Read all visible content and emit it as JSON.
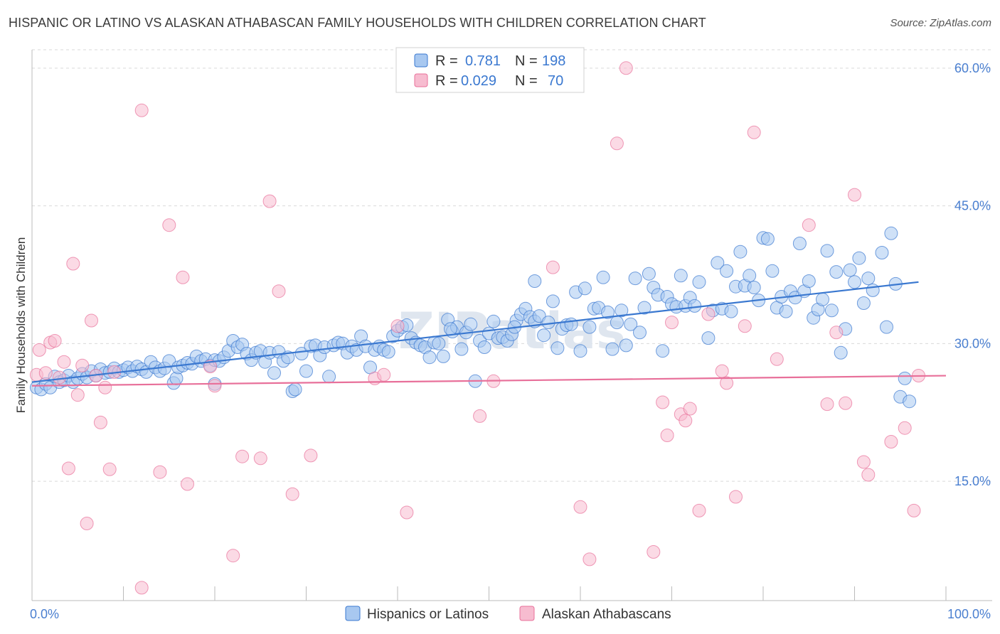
{
  "title": "HISPANIC OR LATINO VS ALASKAN ATHABASCAN FAMILY HOUSEHOLDS WITH CHILDREN CORRELATION CHART",
  "source": "Source: ZipAtlas.com",
  "watermark": "ZIPatlas",
  "colors": {
    "blue": "#3a78d0",
    "blue_fill": "#a8c8f0",
    "pink": "#e8709a",
    "pink_fill": "#f7bcd0",
    "axis_label": "#4a7fd0",
    "grid": "#d8d8d8"
  },
  "legend": {
    "rows": [
      {
        "r_label": "R =",
        "r_value": "0.781",
        "n_label": "N =",
        "n_value": "198"
      },
      {
        "r_label": "R =",
        "r_value": "0.029",
        "n_label": "N =",
        "n_value": "70"
      }
    ]
  },
  "chart_data": {
    "type": "scatter",
    "title": "HISPANIC OR LATINO VS ALASKAN ATHABASCAN FAMILY HOUSEHOLDS WITH CHILDREN CORRELATION CHART",
    "xlabel": "",
    "ylabel": "Family Households with Children",
    "xlim": [
      0,
      100
    ],
    "ylim": [
      2,
      62
    ],
    "x_tick_labels": [
      "0.0%",
      "100.0%"
    ],
    "y_ticks": [
      15,
      30,
      45,
      60
    ],
    "y_tick_labels": [
      "15.0%",
      "30.0%",
      "45.0%",
      "60.0%"
    ],
    "grid": "horizontal dashed",
    "legend_position": "top-center",
    "series": [
      {
        "name": "Hispanics or Latinos",
        "color": "#3a78d0",
        "trend": {
          "x": [
            0,
            97
          ],
          "y": [
            25.8,
            36.7
          ]
        },
        "points": [
          [
            0.5,
            25.2
          ],
          [
            1,
            25.0
          ],
          [
            1.5,
            25.6
          ],
          [
            2,
            25.2
          ],
          [
            2.5,
            26.4
          ],
          [
            3,
            25.8
          ],
          [
            3.5,
            26.0
          ],
          [
            4,
            26.5
          ],
          [
            4.5,
            25.8
          ],
          [
            5,
            26.2
          ],
          [
            5.5,
            26.7
          ],
          [
            6,
            26.3
          ],
          [
            6.5,
            27.0
          ],
          [
            7,
            26.5
          ],
          [
            7.5,
            27.2
          ],
          [
            8,
            26.8
          ],
          [
            8.5,
            26.9
          ],
          [
            9,
            27.3
          ],
          [
            9.5,
            26.9
          ],
          [
            10,
            27.1
          ],
          [
            10.5,
            27.4
          ],
          [
            11,
            27.0
          ],
          [
            11.5,
            27.5
          ],
          [
            12,
            27.2
          ],
          [
            12.5,
            26.9
          ],
          [
            13,
            28.0
          ],
          [
            13.5,
            27.4
          ],
          [
            14,
            27.0
          ],
          [
            14.5,
            27.3
          ],
          [
            15,
            28.1
          ],
          [
            15.5,
            25.7
          ],
          [
            15.8,
            26.2
          ],
          [
            16,
            27.4
          ],
          [
            16.5,
            27.6
          ],
          [
            17,
            27.9
          ],
          [
            17.5,
            27.8
          ],
          [
            18,
            28.6
          ],
          [
            18.5,
            28.1
          ],
          [
            19,
            28.3
          ],
          [
            19.5,
            27.6
          ],
          [
            20,
            28.2
          ],
          [
            20,
            25.6
          ],
          [
            20.5,
            28.1
          ],
          [
            21,
            28.5
          ],
          [
            21.5,
            29.2
          ],
          [
            22,
            30.3
          ],
          [
            22.5,
            29.6
          ],
          [
            23,
            29.9
          ],
          [
            23.5,
            28.9
          ],
          [
            24,
            28.2
          ],
          [
            24.5,
            29.0
          ],
          [
            25,
            29.2
          ],
          [
            25.5,
            28.0
          ],
          [
            26,
            29.0
          ],
          [
            26.5,
            26.8
          ],
          [
            27,
            29.1
          ],
          [
            27.5,
            28.1
          ],
          [
            28,
            28.5
          ],
          [
            28.5,
            24.8
          ],
          [
            28.8,
            25.0
          ],
          [
            29.5,
            28.9
          ],
          [
            30,
            27.0
          ],
          [
            30.5,
            29.7
          ],
          [
            31,
            29.8
          ],
          [
            31.5,
            28.7
          ],
          [
            32,
            29.6
          ],
          [
            32.5,
            26.4
          ],
          [
            33,
            29.8
          ],
          [
            33.5,
            30.1
          ],
          [
            34,
            30.0
          ],
          [
            34.5,
            29.0
          ],
          [
            35,
            29.7
          ],
          [
            35.5,
            29.3
          ],
          [
            36,
            30.8
          ],
          [
            36.5,
            29.7
          ],
          [
            37,
            27.4
          ],
          [
            37.5,
            29.3
          ],
          [
            38,
            29.7
          ],
          [
            38.5,
            29.3
          ],
          [
            39,
            29.1
          ],
          [
            39.5,
            30.8
          ],
          [
            40,
            31.4
          ],
          [
            40.5,
            31.8
          ],
          [
            41,
            32.0
          ],
          [
            41.5,
            30.6
          ],
          [
            42,
            30.1
          ],
          [
            42.5,
            29.8
          ],
          [
            43,
            29.6
          ],
          [
            43.5,
            28.5
          ],
          [
            44,
            30.1
          ],
          [
            44.5,
            30.0
          ],
          [
            45,
            28.6
          ],
          [
            45.5,
            32.6
          ],
          [
            46,
            31.3
          ],
          [
            46.5,
            31.8
          ],
          [
            47,
            29.4
          ],
          [
            47.5,
            31.2
          ],
          [
            48,
            32.1
          ],
          [
            48.5,
            25.9
          ],
          [
            49,
            30.3
          ],
          [
            49.5,
            29.6
          ],
          [
            50,
            31.1
          ],
          [
            50.5,
            32.4
          ],
          [
            51,
            30.6
          ],
          [
            51.5,
            30.7
          ],
          [
            52,
            30.3
          ],
          [
            52.5,
            31.0
          ],
          [
            53,
            32.5
          ],
          [
            53.5,
            33.2
          ],
          [
            54,
            33.8
          ],
          [
            54.5,
            32.9
          ],
          [
            55,
            32.4
          ],
          [
            55.5,
            33.0
          ],
          [
            56,
            30.9
          ],
          [
            56.5,
            32.3
          ],
          [
            57,
            34.6
          ],
          [
            57.5,
            29.5
          ],
          [
            58,
            31.6
          ],
          [
            58.5,
            32.0
          ],
          [
            59,
            32.1
          ],
          [
            59.5,
            35.6
          ],
          [
            60,
            29.2
          ],
          [
            60.5,
            36.0
          ],
          [
            61,
            31.8
          ],
          [
            61.5,
            33.8
          ],
          [
            62,
            33.9
          ],
          [
            62.5,
            37.2
          ],
          [
            63,
            33.4
          ],
          [
            63.5,
            29.4
          ],
          [
            64,
            32.3
          ],
          [
            64.5,
            33.6
          ],
          [
            65,
            29.8
          ],
          [
            65.5,
            32.1
          ],
          [
            66,
            37.1
          ],
          [
            66.5,
            31.2
          ],
          [
            67,
            33.9
          ],
          [
            67.5,
            37.6
          ],
          [
            68,
            36.1
          ],
          [
            68.5,
            35.3
          ],
          [
            69,
            29.2
          ],
          [
            69.5,
            35.1
          ],
          [
            70,
            34.3
          ],
          [
            70.5,
            34.0
          ],
          [
            71,
            37.4
          ],
          [
            71.5,
            34.1
          ],
          [
            72,
            35.0
          ],
          [
            72.5,
            34.1
          ],
          [
            73,
            36.7
          ],
          [
            74,
            30.6
          ],
          [
            74.5,
            33.6
          ],
          [
            75,
            38.8
          ],
          [
            75.5,
            33.8
          ],
          [
            76,
            37.9
          ],
          [
            76.5,
            33.5
          ],
          [
            77,
            36.2
          ],
          [
            77.5,
            40.0
          ],
          [
            78,
            36.3
          ],
          [
            78.5,
            37.4
          ],
          [
            79,
            36.1
          ],
          [
            79.5,
            34.7
          ],
          [
            80,
            41.5
          ],
          [
            80.5,
            41.4
          ],
          [
            81,
            37.9
          ],
          [
            81.5,
            33.9
          ],
          [
            82,
            35.1
          ],
          [
            82.5,
            33.5
          ],
          [
            83,
            35.7
          ],
          [
            83.5,
            35.0
          ],
          [
            84,
            40.9
          ],
          [
            84.5,
            35.7
          ],
          [
            85,
            36.8
          ],
          [
            85.5,
            32.8
          ],
          [
            86,
            33.7
          ],
          [
            86.5,
            34.8
          ],
          [
            87,
            40.1
          ],
          [
            87.5,
            33.6
          ],
          [
            88,
            37.8
          ],
          [
            88.5,
            29.0
          ],
          [
            89,
            31.6
          ],
          [
            89.5,
            38.0
          ],
          [
            90,
            36.7
          ],
          [
            90.5,
            39.3
          ],
          [
            91,
            34.4
          ],
          [
            91.5,
            37.1
          ],
          [
            92,
            35.8
          ],
          [
            93,
            39.9
          ],
          [
            93.5,
            31.8
          ],
          [
            94,
            42.0
          ],
          [
            94.5,
            36.5
          ],
          [
            95,
            24.2
          ],
          [
            95.5,
            26.2
          ],
          [
            96,
            23.7
          ],
          [
            45.8,
            31.6
          ],
          [
            52.8,
            31.8
          ],
          [
            55,
            36.8
          ]
        ]
      },
      {
        "name": "Alaskan Athabascans",
        "color": "#e8709a",
        "trend": {
          "x": [
            0,
            100
          ],
          "y": [
            25.4,
            26.5
          ]
        },
        "points": [
          [
            0.5,
            26.6
          ],
          [
            0.8,
            29.3
          ],
          [
            1.5,
            26.8
          ],
          [
            2,
            30.1
          ],
          [
            2.5,
            30.3
          ],
          [
            3,
            26.3
          ],
          [
            3.5,
            28.0
          ],
          [
            4,
            16.4
          ],
          [
            4.5,
            38.7
          ],
          [
            5,
            24.4
          ],
          [
            5.5,
            27.6
          ],
          [
            6,
            10.4
          ],
          [
            6.5,
            32.5
          ],
          [
            7,
            26.5
          ],
          [
            7.5,
            21.4
          ],
          [
            8,
            25.2
          ],
          [
            8.5,
            16.3
          ],
          [
            9,
            26.9
          ],
          [
            12,
            55.4
          ],
          [
            12,
            3.4
          ],
          [
            14,
            16.0
          ],
          [
            15,
            42.9
          ],
          [
            16.5,
            37.2
          ],
          [
            17,
            14.7
          ],
          [
            19.5,
            27.5
          ],
          [
            20,
            25.4
          ],
          [
            22,
            6.9
          ],
          [
            23,
            17.7
          ],
          [
            25,
            17.5
          ],
          [
            26,
            45.5
          ],
          [
            27,
            35.7
          ],
          [
            28.5,
            13.6
          ],
          [
            30.5,
            17.8
          ],
          [
            37.5,
            26.2
          ],
          [
            38.5,
            26.6
          ],
          [
            40,
            31.9
          ],
          [
            41,
            11.6
          ],
          [
            49,
            22.1
          ],
          [
            50.5,
            25.9
          ],
          [
            57,
            38.3
          ],
          [
            60,
            12.2
          ],
          [
            61,
            6.5
          ],
          [
            64,
            51.8
          ],
          [
            65,
            60.0
          ],
          [
            68,
            7.3
          ],
          [
            69,
            23.6
          ],
          [
            69.5,
            20.0
          ],
          [
            70,
            32.3
          ],
          [
            71,
            22.3
          ],
          [
            71.5,
            21.6
          ],
          [
            72,
            22.9
          ],
          [
            73,
            11.8
          ],
          [
            74,
            33.2
          ],
          [
            75.5,
            27.0
          ],
          [
            76,
            25.7
          ],
          [
            77,
            13.3
          ],
          [
            78,
            31.9
          ],
          [
            79,
            53.0
          ],
          [
            81.5,
            28.3
          ],
          [
            85,
            42.9
          ],
          [
            87,
            23.4
          ],
          [
            88,
            31.2
          ],
          [
            89,
            23.5
          ],
          [
            90,
            46.2
          ],
          [
            91,
            17.1
          ],
          [
            91.5,
            15.7
          ],
          [
            94,
            19.3
          ],
          [
            95.5,
            20.8
          ],
          [
            96.5,
            11.8
          ],
          [
            97,
            26.5
          ]
        ]
      }
    ]
  },
  "bottom_legend": [
    {
      "label": "Hispanics or Latinos",
      "color": "#a8c8f0"
    },
    {
      "label": "Alaskan Athabascans",
      "color": "#f7bcd0"
    }
  ]
}
